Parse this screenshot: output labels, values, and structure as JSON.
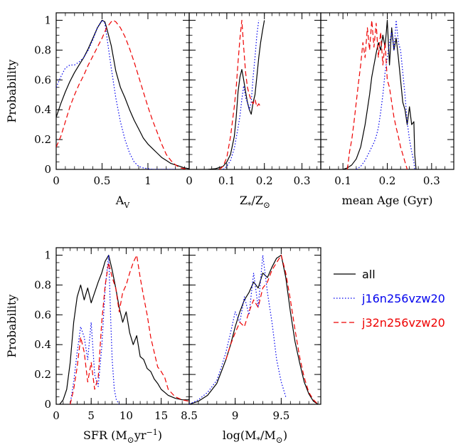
{
  "legend": [
    {
      "label": "all",
      "color": "#000000",
      "dash": "solid"
    },
    {
      "label": "j16n256vzw20",
      "color": "#0000ee",
      "dash": "dotted"
    },
    {
      "label": "j32n256vzw20",
      "color": "#ee0000",
      "dash": "dashed"
    }
  ],
  "chart_data": [
    {
      "type": "line",
      "ylabel": "Probability",
      "xlabel": {
        "main": "A",
        "sub": "V"
      },
      "xlim": [
        0,
        1.45
      ],
      "ylim": [
        0,
        1.05
      ],
      "xticks": [
        0,
        0.5,
        1
      ],
      "xticklabels": [
        "0",
        "0.5",
        "1"
      ],
      "yticks": [
        0,
        0.2,
        0.4,
        0.6,
        0.8,
        1
      ],
      "yticklabels": [
        "0",
        "0.2",
        "0.4",
        "0.6",
        "0.8",
        "1"
      ],
      "series": [
        {
          "name": "all",
          "color": "#000000",
          "dash": "solid",
          "x": [
            0,
            0.05,
            0.1,
            0.15,
            0.2,
            0.25,
            0.3,
            0.35,
            0.4,
            0.45,
            0.5,
            0.53,
            0.55,
            0.6,
            0.65,
            0.7,
            0.75,
            0.8,
            0.85,
            0.9,
            0.95,
            1.0,
            1.05,
            1.1,
            1.15,
            1.2,
            1.25,
            1.3,
            1.35,
            1.4,
            1.45
          ],
          "y": [
            0.35,
            0.44,
            0.52,
            0.59,
            0.65,
            0.7,
            0.75,
            0.81,
            0.88,
            0.95,
            1.0,
            0.99,
            0.95,
            0.83,
            0.66,
            0.55,
            0.48,
            0.4,
            0.33,
            0.27,
            0.21,
            0.17,
            0.14,
            0.11,
            0.08,
            0.06,
            0.04,
            0.03,
            0.02,
            0.01,
            0.005
          ]
        },
        {
          "name": "j16n256vzw20",
          "color": "#0000ee",
          "dash": "dotted",
          "x": [
            0,
            0.05,
            0.1,
            0.15,
            0.2,
            0.25,
            0.3,
            0.35,
            0.4,
            0.45,
            0.5,
            0.53,
            0.55,
            0.6,
            0.65,
            0.7,
            0.75,
            0.8,
            0.85,
            0.9,
            0.95,
            1.0,
            1.05,
            1.1,
            1.2,
            1.3
          ],
          "y": [
            0.55,
            0.62,
            0.68,
            0.7,
            0.7,
            0.72,
            0.75,
            0.8,
            0.87,
            0.95,
            1.0,
            0.98,
            0.9,
            0.68,
            0.48,
            0.32,
            0.2,
            0.11,
            0.05,
            0.02,
            0.01,
            0.005,
            0,
            0,
            0,
            0
          ]
        },
        {
          "name": "j32n256vzw20",
          "color": "#ee0000",
          "dash": "dashed",
          "x": [
            0,
            0.05,
            0.1,
            0.15,
            0.2,
            0.25,
            0.3,
            0.35,
            0.4,
            0.45,
            0.5,
            0.55,
            0.6,
            0.62,
            0.65,
            0.7,
            0.75,
            0.8,
            0.85,
            0.9,
            0.95,
            1.0,
            1.05,
            1.1,
            1.15,
            1.2,
            1.25,
            1.3,
            1.35,
            1.4,
            1.45
          ],
          "y": [
            0.15,
            0.22,
            0.32,
            0.42,
            0.5,
            0.57,
            0.63,
            0.7,
            0.76,
            0.82,
            0.88,
            0.95,
            0.99,
            1.0,
            0.99,
            0.95,
            0.89,
            0.81,
            0.72,
            0.62,
            0.52,
            0.42,
            0.33,
            0.25,
            0.17,
            0.1,
            0.06,
            0.03,
            0.01,
            0.005,
            0
          ]
        }
      ]
    },
    {
      "type": "line",
      "ylabel": "",
      "xlabel": {
        "main": "Z",
        "star": "*",
        "slash": "/Z",
        "sun": "⊙"
      },
      "xlim": [
        0,
        0.35
      ],
      "ylim": [
        0,
        1.05
      ],
      "xticks": [
        0,
        0.1,
        0.2,
        0.3
      ],
      "xticklabels": [
        "0",
        "0.1",
        "0.2",
        "0.3"
      ],
      "yticks": [
        0,
        0.2,
        0.4,
        0.6,
        0.8,
        1
      ],
      "yticklabels": [],
      "series": [
        {
          "name": "all",
          "color": "#000000",
          "dash": "solid",
          "x": [
            0.05,
            0.07,
            0.09,
            0.1,
            0.11,
            0.12,
            0.125,
            0.13,
            0.135,
            0.14,
            0.145,
            0.15,
            0.155,
            0.16,
            0.165,
            0.17,
            0.175,
            0.18,
            0.185,
            0.19,
            0.195,
            0.2
          ],
          "y": [
            0,
            0.005,
            0.02,
            0.05,
            0.1,
            0.22,
            0.35,
            0.52,
            0.62,
            0.67,
            0.6,
            0.52,
            0.45,
            0.4,
            0.37,
            0.45,
            0.5,
            0.62,
            0.75,
            0.85,
            0.93,
            1.0
          ]
        },
        {
          "name": "j16n256vzw20",
          "color": "#0000ee",
          "dash": "dotted",
          "x": [
            0.09,
            0.1,
            0.11,
            0.12,
            0.13,
            0.135,
            0.14,
            0.145,
            0.15,
            0.155,
            0.16,
            0.165,
            0.17,
            0.175,
            0.18,
            0.185
          ],
          "y": [
            0,
            0.02,
            0.06,
            0.14,
            0.28,
            0.36,
            0.47,
            0.56,
            0.48,
            0.45,
            0.4,
            0.45,
            0.62,
            0.75,
            0.9,
            1.0
          ]
        },
        {
          "name": "j32n256vzw20",
          "color": "#ee0000",
          "dash": "dashed",
          "x": [
            0.08,
            0.09,
            0.1,
            0.11,
            0.12,
            0.125,
            0.13,
            0.135,
            0.14,
            0.145,
            0.15,
            0.155,
            0.16,
            0.165,
            0.17,
            0.175,
            0.18,
            0.185,
            0.19
          ],
          "y": [
            0,
            0.02,
            0.08,
            0.22,
            0.42,
            0.55,
            0.72,
            0.88,
            1.0,
            0.82,
            0.65,
            0.55,
            0.5,
            0.46,
            0.44,
            0.47,
            0.42,
            0.44,
            0.42
          ]
        }
      ]
    },
    {
      "type": "line",
      "ylabel": "",
      "xlabel": {
        "main": "mean Age (Gyr)"
      },
      "xlim": [
        0.05,
        0.35
      ],
      "ylim": [
        0,
        1.05
      ],
      "xticks": [
        0.1,
        0.2,
        0.3
      ],
      "xticklabels": [
        "0.1",
        "0.2",
        "0.3"
      ],
      "yticks": [
        0,
        0.2,
        0.4,
        0.6,
        0.8,
        1
      ],
      "yticklabels": [],
      "series": [
        {
          "name": "all",
          "color": "#000000",
          "dash": "solid",
          "x": [
            0.1,
            0.11,
            0.12,
            0.13,
            0.14,
            0.15,
            0.16,
            0.165,
            0.17,
            0.175,
            0.18,
            0.185,
            0.19,
            0.195,
            0.2,
            0.205,
            0.21,
            0.215,
            0.22,
            0.225,
            0.23,
            0.235,
            0.24,
            0.245,
            0.25,
            0.255,
            0.26,
            0.262,
            0.265
          ],
          "y": [
            0,
            0.01,
            0.03,
            0.07,
            0.15,
            0.3,
            0.5,
            0.62,
            0.7,
            0.78,
            0.85,
            0.8,
            0.9,
            0.82,
            1.0,
            0.7,
            0.95,
            0.8,
            0.88,
            0.75,
            0.6,
            0.45,
            0.4,
            0.3,
            0.42,
            0.3,
            0.32,
            0.1,
            0
          ]
        },
        {
          "name": "j16n256vzw20",
          "color": "#0000ee",
          "dash": "dotted",
          "x": [
            0.13,
            0.14,
            0.15,
            0.16,
            0.17,
            0.175,
            0.18,
            0.185,
            0.19,
            0.195,
            0.2,
            0.205,
            0.21,
            0.215,
            0.22,
            0.225,
            0.23,
            0.235,
            0.24,
            0.245,
            0.25,
            0.255,
            0.26,
            0.262
          ],
          "y": [
            0,
            0.02,
            0.06,
            0.12,
            0.18,
            0.22,
            0.28,
            0.38,
            0.5,
            0.65,
            0.75,
            0.85,
            0.92,
            0.8,
            1.0,
            0.85,
            0.8,
            0.65,
            0.5,
            0.32,
            0.2,
            0.12,
            0.05,
            0
          ]
        },
        {
          "name": "j32n256vzw20",
          "color": "#ee0000",
          "dash": "dashed",
          "x": [
            0.11,
            0.115,
            0.12,
            0.125,
            0.13,
            0.135,
            0.14,
            0.145,
            0.15,
            0.155,
            0.16,
            0.165,
            0.17,
            0.175,
            0.18,
            0.185,
            0.19,
            0.195,
            0.2,
            0.205,
            0.21,
            0.215,
            0.22,
            0.225,
            0.23,
            0.235,
            0.24,
            0.245
          ],
          "y": [
            0,
            0.12,
            0.2,
            0.32,
            0.45,
            0.58,
            0.7,
            0.85,
            0.75,
            0.95,
            0.8,
            1.0,
            0.82,
            0.98,
            0.75,
            0.92,
            0.7,
            0.85,
            0.6,
            0.55,
            0.45,
            0.35,
            0.28,
            0.22,
            0.15,
            0.1,
            0.05,
            0
          ]
        }
      ]
    },
    {
      "type": "line",
      "ylabel": "Probability",
      "xlabel": {
        "main": "SFR (M",
        "sun": "⊙",
        "rest": "yr",
        "sup": "−1",
        "close": ")"
      },
      "xlim": [
        0,
        19
      ],
      "ylim": [
        0,
        1.05
      ],
      "xticks": [
        0,
        5,
        10,
        15
      ],
      "xticklabels": [
        "0",
        "5",
        "10",
        "15"
      ],
      "yticks": [
        0,
        0.2,
        0.4,
        0.6,
        0.8,
        1
      ],
      "yticklabels": [
        "0",
        "0.2",
        "0.4",
        "0.6",
        "0.8",
        "1"
      ],
      "series": [
        {
          "name": "all",
          "color": "#000000",
          "dash": "solid",
          "x": [
            0.5,
            1,
            1.5,
            2,
            2.5,
            3,
            3.5,
            4,
            4.5,
            5,
            5.5,
            6,
            6.5,
            7,
            7.5,
            8,
            8.5,
            9,
            9.5,
            10,
            10.5,
            11,
            11.5,
            12,
            12.5,
            13,
            13.5,
            14,
            14.5,
            15,
            15.5,
            16,
            17,
            18,
            19
          ],
          "y": [
            0,
            0.03,
            0.1,
            0.28,
            0.55,
            0.72,
            0.8,
            0.7,
            0.78,
            0.68,
            0.75,
            0.82,
            0.88,
            0.96,
            1.0,
            0.9,
            0.78,
            0.65,
            0.55,
            0.62,
            0.48,
            0.4,
            0.46,
            0.32,
            0.3,
            0.24,
            0.22,
            0.17,
            0.14,
            0.1,
            0.08,
            0.06,
            0.04,
            0.03,
            0.03
          ]
        },
        {
          "name": "j16n256vzw20",
          "color": "#0000ee",
          "dash": "dotted",
          "x": [
            2,
            2.5,
            3,
            3.5,
            4,
            4.5,
            5,
            5.5,
            6,
            6.5,
            7,
            7.5,
            7.8,
            8,
            8.3,
            8.6,
            9
          ],
          "y": [
            0,
            0.15,
            0.35,
            0.52,
            0.45,
            0.3,
            0.55,
            0.2,
            0.12,
            0.38,
            0.78,
            1.0,
            0.55,
            0.3,
            0.1,
            0.03,
            0
          ]
        },
        {
          "name": "j32n256vzw20",
          "color": "#ee0000",
          "dash": "dashed",
          "x": [
            2,
            2.5,
            3,
            3.5,
            4,
            4.5,
            5,
            5.5,
            6,
            6.5,
            7,
            7.5,
            8,
            8.5,
            9,
            9.5,
            10,
            10.5,
            11,
            11.5,
            12,
            12.5,
            13,
            13.5,
            14,
            14.5,
            15,
            15.5,
            16,
            17,
            18,
            19
          ],
          "y": [
            0,
            0.1,
            0.25,
            0.45,
            0.35,
            0.15,
            0.28,
            0.1,
            0.18,
            0.55,
            0.8,
            0.95,
            0.85,
            0.78,
            0.62,
            0.75,
            0.8,
            0.88,
            0.95,
            1.0,
            0.85,
            0.72,
            0.6,
            0.45,
            0.35,
            0.25,
            0.22,
            0.18,
            0.1,
            0.05,
            0.03,
            0.02
          ]
        }
      ]
    },
    {
      "type": "line",
      "ylabel": "",
      "xlabel": {
        "main": "log(M",
        "star": "*",
        "slash": "/M",
        "sun": "⊙",
        "close": ")"
      },
      "xlim": [
        8.5,
        9.93
      ],
      "ylim": [
        0,
        1.05
      ],
      "xticks": [
        8.5,
        9,
        9.5
      ],
      "xticklabels": [
        "8.5",
        "9",
        "9.5"
      ],
      "yticks": [
        0,
        0.2,
        0.4,
        0.6,
        0.8,
        1
      ],
      "yticklabels": [],
      "series": [
        {
          "name": "all",
          "color": "#000000",
          "dash": "solid",
          "x": [
            8.5,
            8.6,
            8.7,
            8.8,
            8.85,
            8.9,
            8.95,
            9.0,
            9.05,
            9.1,
            9.15,
            9.2,
            9.25,
            9.3,
            9.35,
            9.4,
            9.45,
            9.5,
            9.55,
            9.6,
            9.65,
            9.7,
            9.75,
            9.8,
            9.85,
            9.9
          ],
          "y": [
            0,
            0.02,
            0.06,
            0.14,
            0.22,
            0.3,
            0.4,
            0.52,
            0.62,
            0.7,
            0.75,
            0.82,
            0.78,
            0.88,
            0.85,
            0.92,
            0.98,
            1.0,
            0.85,
            0.62,
            0.42,
            0.28,
            0.15,
            0.07,
            0.02,
            0
          ]
        },
        {
          "name": "j16n256vzw20",
          "color": "#0000ee",
          "dash": "dotted",
          "x": [
            8.5,
            8.6,
            8.7,
            8.8,
            8.85,
            8.9,
            8.95,
            9.0,
            9.05,
            9.1,
            9.15,
            9.2,
            9.25,
            9.3,
            9.35,
            9.4,
            9.45,
            9.5,
            9.55
          ],
          "y": [
            0,
            0.03,
            0.08,
            0.16,
            0.25,
            0.35,
            0.48,
            0.62,
            0.55,
            0.72,
            0.6,
            0.88,
            0.65,
            1.0,
            0.75,
            0.55,
            0.3,
            0.15,
            0.05
          ]
        },
        {
          "name": "j32n256vzw20",
          "color": "#ee0000",
          "dash": "dashed",
          "x": [
            8.9,
            8.95,
            9.0,
            9.05,
            9.1,
            9.15,
            9.2,
            9.25,
            9.3,
            9.35,
            9.4,
            9.45,
            9.5,
            9.55,
            9.6,
            9.65,
            9.7,
            9.75,
            9.8,
            9.85,
            9.9
          ],
          "y": [
            0.3,
            0.4,
            0.48,
            0.55,
            0.52,
            0.62,
            0.7,
            0.65,
            0.78,
            0.82,
            0.9,
            0.95,
            1.0,
            0.88,
            0.7,
            0.5,
            0.32,
            0.18,
            0.08,
            0.03,
            0
          ]
        }
      ]
    }
  ]
}
